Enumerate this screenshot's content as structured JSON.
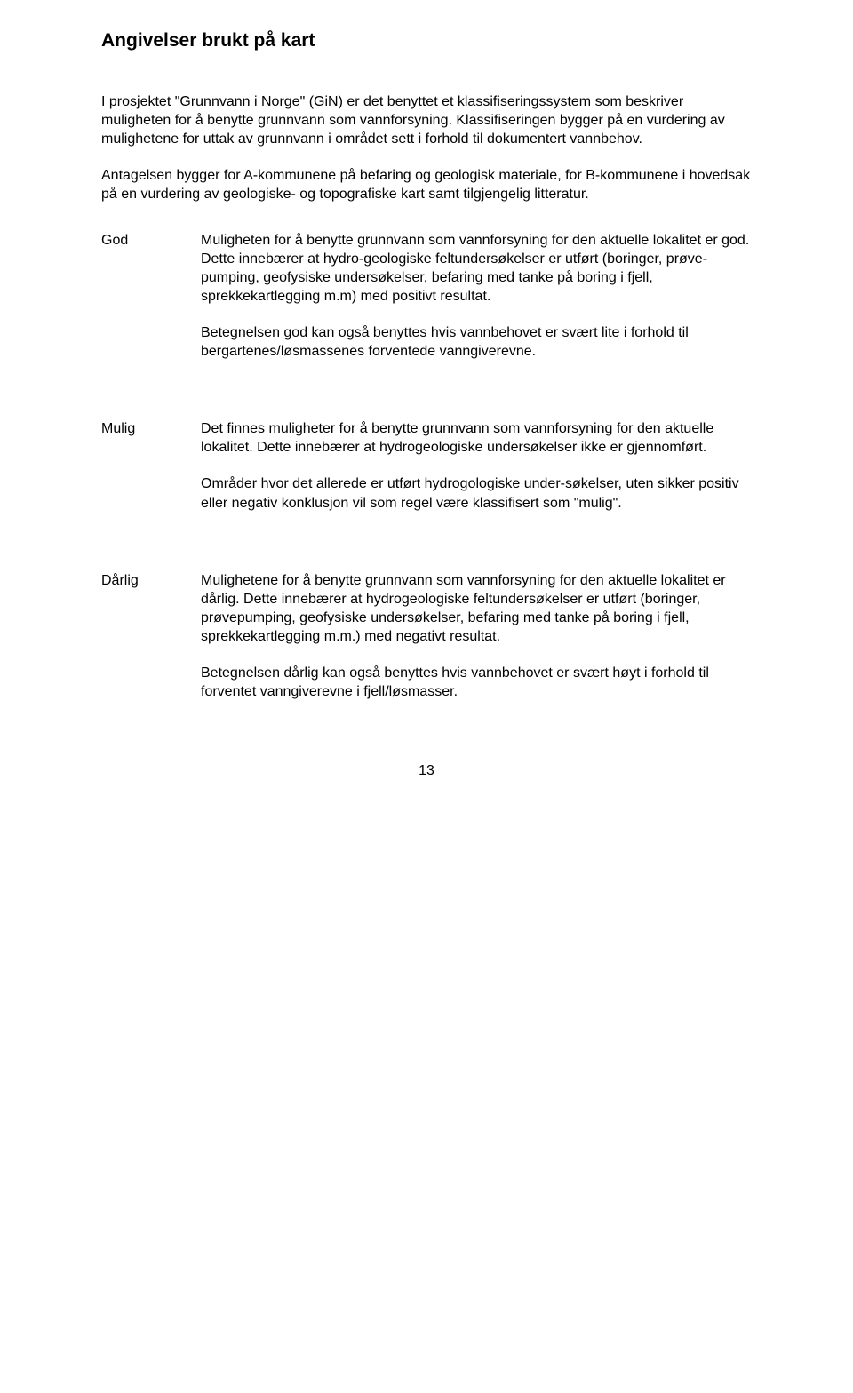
{
  "title": "Angivelser brukt på kart",
  "intro": {
    "p1": "I prosjektet \"Grunnvann i Norge\" (GiN) er det benyttet et klassifiseringssystem som beskriver muligheten for å benytte grunnvann som vannforsyning. Klassifiseringen bygger på en vurdering av mulighetene for uttak av grunnvann i området sett i forhold til dokumentert vannbehov.",
    "p2": "Antagelsen bygger for A-kommunene på befaring og geologisk materiale, for B-kommunene i hovedsak på en vurdering av geologiske- og topografiske kart samt tilgjengelig litteratur."
  },
  "definitions": [
    {
      "label": "God",
      "paragraphs": [
        "Muligheten for å benytte grunnvann som vannforsyning for den aktuelle lokalitet er god. Dette innebærer at hydro-geologiske feltundersøkelser er utført (boringer, prøve-pumping, geofysiske undersøkelser, befaring med tanke på boring i fjell, sprekkekartlegging m.m) med positivt resultat.",
        "Betegnelsen god kan også benyttes hvis vannbehovet er svært lite i forhold til bergartenes/løsmassenes forventede vanngiverevne."
      ]
    },
    {
      "label": "Mulig",
      "paragraphs": [
        "Det finnes muligheter for å benytte grunnvann som vannforsyning for den aktuelle lokalitet. Dette innebærer at hydrogeologiske undersøkelser ikke er gjennomført.",
        "Områder hvor det allerede er utført hydrogologiske under-søkelser, uten sikker positiv eller negativ konklusjon vil som regel være klassifisert som \"mulig\"."
      ]
    },
    {
      "label": "Dårlig",
      "paragraphs": [
        "Mulighetene for å benytte grunnvann som vannforsyning for den aktuelle lokalitet er dårlig. Dette innebærer at hydrogeologiske feltundersøkelser er utført (boringer, prøvepumping, geofysiske undersøkelser, befaring med tanke på boring i fjell, sprekkekartlegging m.m.) med negativt resultat.",
        "Betegnelsen dårlig kan også benyttes hvis vannbehovet er svært høyt i forhold til forventet vanngiverevne i fjell/løsmasser."
      ]
    }
  ],
  "pageNumber": "13"
}
